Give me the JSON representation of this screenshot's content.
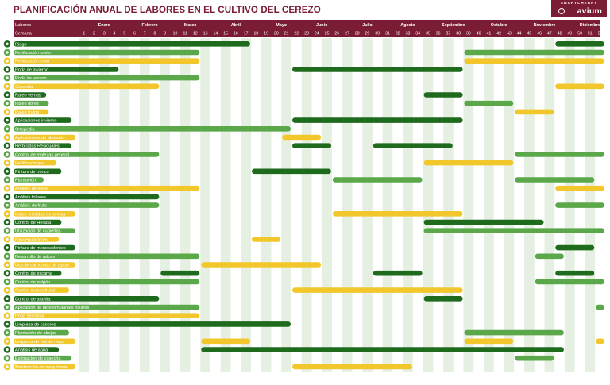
{
  "header": {
    "title": "PLANIFICACIÓN ANUAL DE LABORES EN EL CULTIVO DEL CEREZO",
    "brand_top": "SMARTCHERRY",
    "brand_bottom": "avium"
  },
  "colors": {
    "header_bg": "#7a1c33",
    "dark_green": "#1e6b1e",
    "mid_green": "#5aa84a",
    "yellow": "#f2c72b",
    "stripe": "#e6f0e2"
  },
  "chart_data": {
    "type": "gantt",
    "row_header_label": "Labores",
    "week_header_label": "Semana",
    "weeks": [
      "1",
      "2",
      "3",
      "4",
      "5",
      "6",
      "7",
      "8",
      "9",
      "10",
      "11",
      "12",
      "13",
      "14",
      "15",
      "16",
      "17",
      "18",
      "19",
      "20",
      "21",
      "22",
      "23",
      "24",
      "25",
      "26",
      "27",
      "28",
      "29",
      "30",
      "31",
      "32",
      "33",
      "34",
      "35",
      "36",
      "37",
      "38",
      "39",
      "40",
      "41",
      "42",
      "43",
      "44",
      "45",
      "46",
      "47",
      "48",
      "49",
      "50",
      "51",
      "52"
    ],
    "months": [
      {
        "label": "Enero",
        "week": 3
      },
      {
        "label": "Febrero",
        "week": 7.5
      },
      {
        "label": "Marzo",
        "week": 11.5
      },
      {
        "label": "Abril",
        "week": 16
      },
      {
        "label": "Mayo",
        "week": 20.5
      },
      {
        "label": "Junio",
        "week": 24.5
      },
      {
        "label": "Julio",
        "week": 29
      },
      {
        "label": "Agosto",
        "week": 33
      },
      {
        "label": "Septiembre",
        "week": 37.5
      },
      {
        "label": "Octubre",
        "week": 42
      },
      {
        "label": "Noviembre",
        "week": 46.5
      },
      {
        "label": "Diciembre",
        "week": 51
      }
    ],
    "tasks": [
      {
        "name": "Riego",
        "color": "dark",
        "ranges": [
          [
            1,
            17
          ],
          [
            48,
            52
          ]
        ]
      },
      {
        "name": "Fertilización suelo",
        "color": "mid",
        "ranges": [
          [
            1,
            12
          ],
          [
            39,
            52
          ]
        ]
      },
      {
        "name": "Fertilización foliar",
        "color": "yellow",
        "ranges": [
          [
            1,
            12
          ],
          [
            39,
            52
          ]
        ]
      },
      {
        "name": "Poda de invierno",
        "color": "dark",
        "ranges": [
          [
            1,
            4
          ],
          [
            22,
            38
          ]
        ]
      },
      {
        "name": "Poda de verano",
        "color": "mid",
        "ranges": [
          [
            1,
            12
          ]
        ]
      },
      {
        "name": "Cosecha",
        "color": "yellow",
        "ranges": [
          [
            1,
            8
          ],
          [
            48,
            52
          ]
        ]
      },
      {
        "name": "Raleo yemas",
        "color": "dark",
        "ranges": [
          [
            35,
            38
          ]
        ]
      },
      {
        "name": "Raleo flores",
        "color": "mid",
        "ranges": [
          [
            39,
            43
          ]
        ]
      },
      {
        "name": "Raleo frutos",
        "color": "yellow",
        "ranges": [
          [
            44,
            47
          ]
        ]
      },
      {
        "name": "Aplicaciones invierno",
        "color": "dark",
        "ranges": [
          [
            22,
            38
          ]
        ]
      },
      {
        "name": "Ortopedia",
        "color": "mid",
        "ranges": [
          [
            1,
            21
          ]
        ]
      },
      {
        "name": "Aplicaciones de abonado",
        "color": "yellow",
        "ranges": [
          [
            21,
            24
          ]
        ]
      },
      {
        "name": "Herbicidas Residuales",
        "color": "dark",
        "ranges": [
          [
            22,
            25
          ],
          [
            30,
            37
          ]
        ]
      },
      {
        "name": "Control de malezas general",
        "color": "mid",
        "ranges": [
          [
            1,
            8
          ],
          [
            44,
            52
          ]
        ]
      },
      {
        "name": "Fertilizaciones",
        "color": "yellow",
        "ranges": [
          [
            35,
            43
          ]
        ]
      },
      {
        "name": "Pintura de tronco",
        "color": "dark",
        "ranges": [
          [
            18,
            25
          ]
        ]
      },
      {
        "name": "Plantación",
        "color": "mid",
        "ranges": [
          [
            26,
            34
          ],
          [
            44,
            51
          ]
        ]
      },
      {
        "name": "Análisis de suelo",
        "color": "yellow",
        "ranges": [
          [
            1,
            12
          ],
          [
            48,
            52
          ]
        ]
      },
      {
        "name": "Análisis foliares",
        "color": "dark",
        "ranges": [
          [
            1,
            8
          ]
        ]
      },
      {
        "name": "Análisis de fruto",
        "color": "mid",
        "ranges": [
          [
            1,
            8
          ],
          [
            48,
            52
          ]
        ]
      },
      {
        "name": "Índice fertilidad de yemas",
        "color": "yellow",
        "ranges": [
          [
            26,
            38
          ]
        ]
      },
      {
        "name": "Control de Helada",
        "color": "dark",
        "ranges": [
          [
            35,
            46
          ]
        ]
      },
      {
        "name": "Utilización de cubiertas",
        "color": "mid",
        "ranges": [
          [
            35,
            52
          ]
        ]
      },
      {
        "name": "Fitorreguladores",
        "color": "yellow",
        "ranges": [
          [
            18,
            20
          ]
        ]
      },
      {
        "name": "Pintura de monocadentes",
        "color": "dark",
        "ranges": [
          [
            48,
            51
          ]
        ]
      },
      {
        "name": "Desarrollo de raíces",
        "color": "mid",
        "ranges": [
          [
            1,
            12
          ],
          [
            46,
            48
          ]
        ]
      },
      {
        "name": "Uso de carbonato de calcio",
        "color": "yellow",
        "ranges": [
          [
            13,
            24
          ]
        ]
      },
      {
        "name": "Control de escama",
        "color": "dark",
        "ranges": [
          [
            9,
            12
          ],
          [
            30,
            34
          ],
          [
            48,
            51
          ]
        ]
      },
      {
        "name": "Control de pulgón",
        "color": "mid",
        "ranges": [
          [
            1,
            12
          ],
          [
            46,
            52
          ]
        ]
      },
      {
        "name": "Control mosca frutal",
        "color": "yellow",
        "ranges": [
          [
            22,
            38
          ]
        ]
      },
      {
        "name": "Control de arañita",
        "color": "dark",
        "ranges": [
          [
            1,
            8
          ],
          [
            35,
            38
          ]
        ]
      },
      {
        "name": "Aplicación de bioestimulantes foliares",
        "color": "mid",
        "ranges": [
          [
            1,
            12
          ],
          [
            52,
            52
          ]
        ]
      },
      {
        "name": "Poda selectiva",
        "color": "yellow",
        "ranges": [
          [
            1,
            12
          ]
        ]
      },
      {
        "name": "Limpieza de cancros",
        "color": "dark",
        "ranges": [
          [
            1,
            21
          ]
        ]
      },
      {
        "name": "Plantación de abejas",
        "color": "mid",
        "ranges": [
          [
            39,
            48
          ]
        ]
      },
      {
        "name": "Limpieza de red de riego",
        "color": "yellow",
        "ranges": [
          [
            13,
            17
          ],
          [
            39,
            43
          ],
          [
            52,
            52
          ]
        ]
      },
      {
        "name": "Análisis de agua",
        "color": "dark",
        "ranges": [
          [
            13,
            48
          ]
        ]
      },
      {
        "name": "Estimación de cosecha",
        "color": "mid",
        "ranges": [
          [
            44,
            47
          ]
        ]
      },
      {
        "name": "Mantención de maquinaria",
        "color": "yellow",
        "ranges": [
          [
            22,
            33
          ]
        ]
      }
    ]
  }
}
